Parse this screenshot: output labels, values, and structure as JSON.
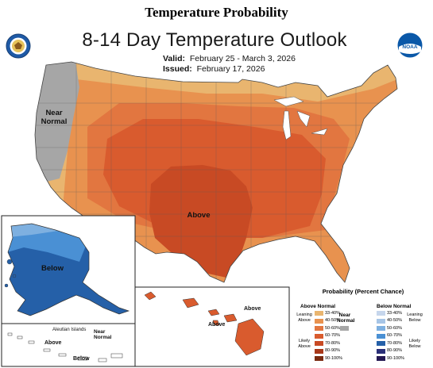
{
  "page_heading": "Temperature Probability",
  "map": {
    "title": "8-14 Day Temperature Outlook",
    "valid_label": "Valid:",
    "valid_value": "February 25 - March 3, 2026",
    "issued_label": "Issued:",
    "issued_value": "February 17, 2026"
  },
  "region_labels": {
    "near_normal_conus": "Near Normal",
    "above_conus": "Above",
    "below_alaska": "Below",
    "above_hawaii_1": "Above",
    "above_hawaii_2": "Above",
    "aleutian_islands": "Aleutian Islands",
    "above_aleutians": "Above",
    "near_normal_aleutians": "Near Normal",
    "below_aleutians": "Below"
  },
  "logos": {
    "left": "doc-seal-icon",
    "right": "noaa-logo-icon"
  },
  "legend": {
    "title": "Probability (Percent Chance)",
    "above_header": "Above Normal",
    "below_header": "Below Normal",
    "near_header": "Near Normal",
    "above_leaning": "Leaning Above",
    "above_likely": "Likely Above",
    "below_leaning": "Leaning Below",
    "below_likely": "Likely Below",
    "above_bins": [
      {
        "label": "33-40%",
        "color": "#e9b56f"
      },
      {
        "label": "40-50%",
        "color": "#e8924f"
      },
      {
        "label": "50-60%",
        "color": "#e27640"
      },
      {
        "label": "60-70%",
        "color": "#d95b2e"
      },
      {
        "label": "70-80%",
        "color": "#c84a24"
      },
      {
        "label": "80-90%",
        "color": "#a8381a"
      },
      {
        "label": "90-100%",
        "color": "#7a2a10"
      }
    ],
    "below_bins": [
      {
        "label": "33-40%",
        "color": "#c6d6ec"
      },
      {
        "label": "40-50%",
        "color": "#a7c5e6"
      },
      {
        "label": "50-60%",
        "color": "#7eb0e0"
      },
      {
        "label": "60-70%",
        "color": "#4a90d4"
      },
      {
        "label": "70-80%",
        "color": "#2560a8"
      },
      {
        "label": "80-90%",
        "color": "#2a2f78"
      },
      {
        "label": "90-100%",
        "color": "#241852"
      }
    ],
    "near_color": "#a6a6a6"
  },
  "colors": {
    "near_normal": "#a6a6a6",
    "above_33_40": "#e9b56f",
    "above_40_50": "#e8924f",
    "above_50_60": "#e27640",
    "above_60_70": "#d95b2e",
    "above_70_80": "#c84a24",
    "below_50_60": "#7eb0e0",
    "below_60_70": "#4a90d4",
    "below_70_80": "#2560a8",
    "water": "#ffffff"
  }
}
